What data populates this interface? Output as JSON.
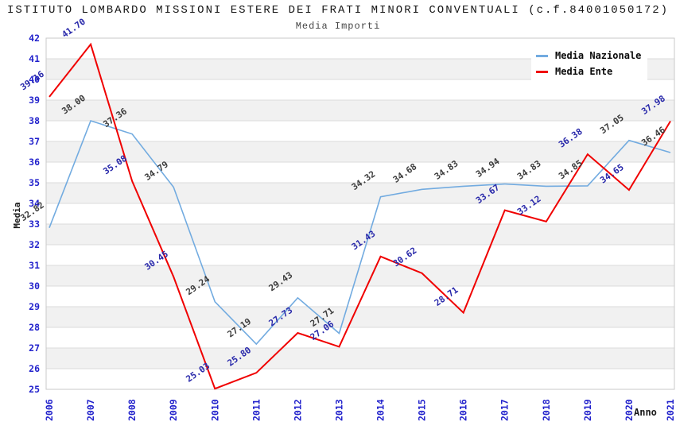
{
  "chart": {
    "title": "ISTITUTO LOMBARDO MISSIONI ESTERE DEI FRATI MINORI CONVENTUALI (c.f.84001050172)",
    "subtitle": "Media Importi",
    "ylabel": "Media",
    "xlabel": "Anno"
  },
  "chart_data": {
    "type": "line",
    "title": "Media Importi",
    "xlabel": "Anno",
    "ylabel": "Media",
    "categories": [
      "2006",
      "2007",
      "2008",
      "2009",
      "2010",
      "2011",
      "2012",
      "2013",
      "2014",
      "2015",
      "2016",
      "2017",
      "2018",
      "2019",
      "2020",
      "2021"
    ],
    "series": [
      {
        "name": "Media Nazionale",
        "color": "#72ABE0",
        "label_color": "#3C3C3C",
        "line_width": 1.6,
        "values": [
          32.82,
          38.0,
          37.36,
          34.79,
          29.24,
          27.19,
          29.43,
          27.71,
          34.32,
          34.68,
          34.83,
          34.94,
          34.83,
          34.85,
          37.05,
          36.46
        ]
      },
      {
        "name": "Media Ente",
        "color": "#F00000",
        "label_color": "#2828AA",
        "line_width": 2,
        "values": [
          39.16,
          41.7,
          35.08,
          30.45,
          25.03,
          25.8,
          27.73,
          27.06,
          31.43,
          30.62,
          28.71,
          33.67,
          33.12,
          36.38,
          34.65,
          37.98
        ]
      }
    ],
    "ylim": [
      25,
      42
    ],
    "ytick_step": 1,
    "grid": true,
    "band_color": "#F1F1F1",
    "gridline_color": "#DBDBDB",
    "border_color": "#C9C9C9",
    "tick_label_color": "#2222CC",
    "legend_position": "top-right"
  }
}
